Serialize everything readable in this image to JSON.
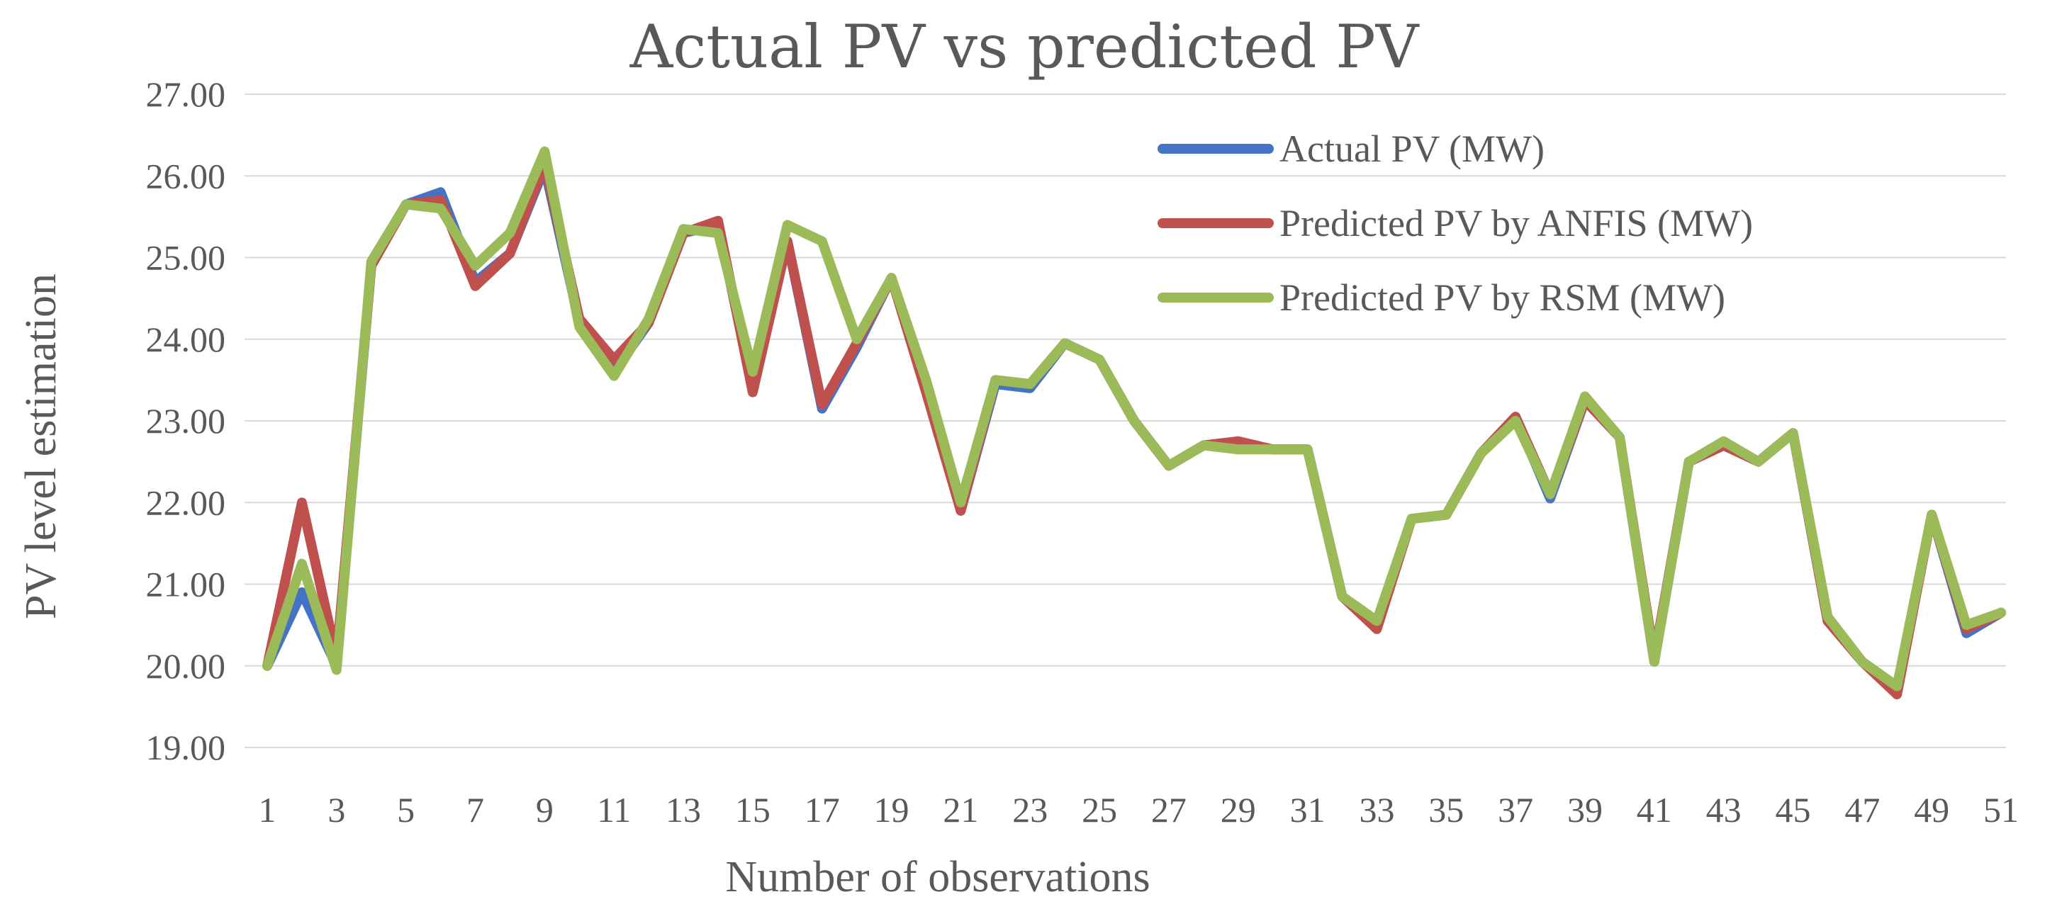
{
  "chart_data": {
    "type": "line",
    "title": "Actual PV vs predicted PV",
    "xlabel": "Number of observations",
    "ylabel": "PV level estimation",
    "ylim": [
      19,
      27
    ],
    "yticks": [
      "19.00",
      "20.00",
      "21.00",
      "22.00",
      "23.00",
      "24.00",
      "25.00",
      "26.00",
      "27.00"
    ],
    "x": [
      1,
      2,
      3,
      4,
      5,
      6,
      7,
      8,
      9,
      10,
      11,
      12,
      13,
      14,
      15,
      16,
      17,
      18,
      19,
      20,
      21,
      22,
      23,
      24,
      25,
      26,
      27,
      28,
      29,
      30,
      31,
      32,
      33,
      34,
      35,
      36,
      37,
      38,
      39,
      40,
      41,
      42,
      43,
      44,
      45,
      46,
      47,
      48,
      49,
      50,
      51
    ],
    "xtick_labels": [
      "1",
      "3",
      "5",
      "7",
      "9",
      "11",
      "13",
      "15",
      "17",
      "19",
      "21",
      "23",
      "25",
      "27",
      "29",
      "31",
      "33",
      "35",
      "37",
      "39",
      "41",
      "43",
      "45",
      "47",
      "49",
      "51"
    ],
    "grid": true,
    "legend_position": "top-right",
    "series": [
      {
        "name": "Actual PV  (MW)",
        "color": "#4472c4",
        "values": [
          20.0,
          20.9,
          20.0,
          24.9,
          25.65,
          25.8,
          24.7,
          25.05,
          26.1,
          24.2,
          23.6,
          24.2,
          25.3,
          25.4,
          23.4,
          25.2,
          23.15,
          23.9,
          24.75,
          23.4,
          21.9,
          23.45,
          23.4,
          23.95,
          23.75,
          23.0,
          22.45,
          22.7,
          22.7,
          22.65,
          22.65,
          20.85,
          20.5,
          21.8,
          21.85,
          22.6,
          23.05,
          22.05,
          23.25,
          22.8,
          20.05,
          22.5,
          22.7,
          22.5,
          22.85,
          20.55,
          20.05,
          19.7,
          21.85,
          20.4,
          20.65
        ]
      },
      {
        "name": "Predicted PV by ANFIS (MW)",
        "color": "#c0504d",
        "values": [
          20.0,
          22.0,
          20.1,
          24.9,
          25.65,
          25.7,
          24.65,
          25.05,
          26.15,
          24.25,
          23.75,
          24.2,
          25.3,
          25.45,
          23.35,
          25.2,
          23.2,
          23.95,
          24.75,
          23.35,
          21.9,
          23.5,
          23.45,
          23.95,
          23.75,
          23.0,
          22.45,
          22.7,
          22.75,
          22.65,
          22.65,
          20.85,
          20.45,
          21.8,
          21.85,
          22.6,
          23.05,
          22.1,
          23.25,
          22.8,
          20.1,
          22.5,
          22.7,
          22.5,
          22.85,
          20.55,
          20.05,
          19.65,
          21.85,
          20.45,
          20.65
        ]
      },
      {
        "name": "Predicted PV by RSM (MW)",
        "color": "#9bbb59",
        "values": [
          20.0,
          21.25,
          19.95,
          24.95,
          25.65,
          25.6,
          24.9,
          25.3,
          26.3,
          24.15,
          23.55,
          24.25,
          25.35,
          25.3,
          23.6,
          25.4,
          25.2,
          24.0,
          24.75,
          23.5,
          22.0,
          23.5,
          23.45,
          23.95,
          23.75,
          23.0,
          22.45,
          22.7,
          22.65,
          22.65,
          22.65,
          20.85,
          20.55,
          21.8,
          21.85,
          22.6,
          23.0,
          22.1,
          23.3,
          22.8,
          20.05,
          22.5,
          22.75,
          22.5,
          22.85,
          20.6,
          20.05,
          19.75,
          21.85,
          20.5,
          20.65
        ]
      }
    ]
  }
}
